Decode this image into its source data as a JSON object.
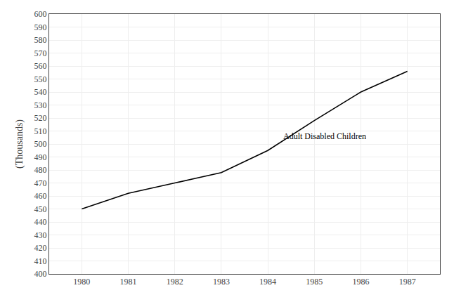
{
  "chart_data": {
    "type": "line",
    "x": [
      1980,
      1981,
      1982,
      1983,
      1984,
      1985,
      1986,
      1987
    ],
    "values": [
      450,
      462,
      470,
      478,
      495,
      518,
      540,
      556
    ],
    "color": "#000000",
    "ylabel": "(Thousands)",
    "annotations": [
      {
        "text": "Adult Disabled Children",
        "x": 1984.3,
        "y": 501
      }
    ],
    "xlim": [
      1979.3,
      1987.7
    ],
    "xticks": [
      1980,
      1981,
      1982,
      1983,
      1984,
      1985,
      1986,
      1987
    ],
    "ylim": [
      400,
      600
    ],
    "yticks": [
      400,
      410,
      420,
      430,
      440,
      450,
      460,
      470,
      480,
      490,
      500,
      510,
      520,
      530,
      540,
      550,
      560,
      570,
      580,
      590,
      600
    ],
    "grid": true
  }
}
